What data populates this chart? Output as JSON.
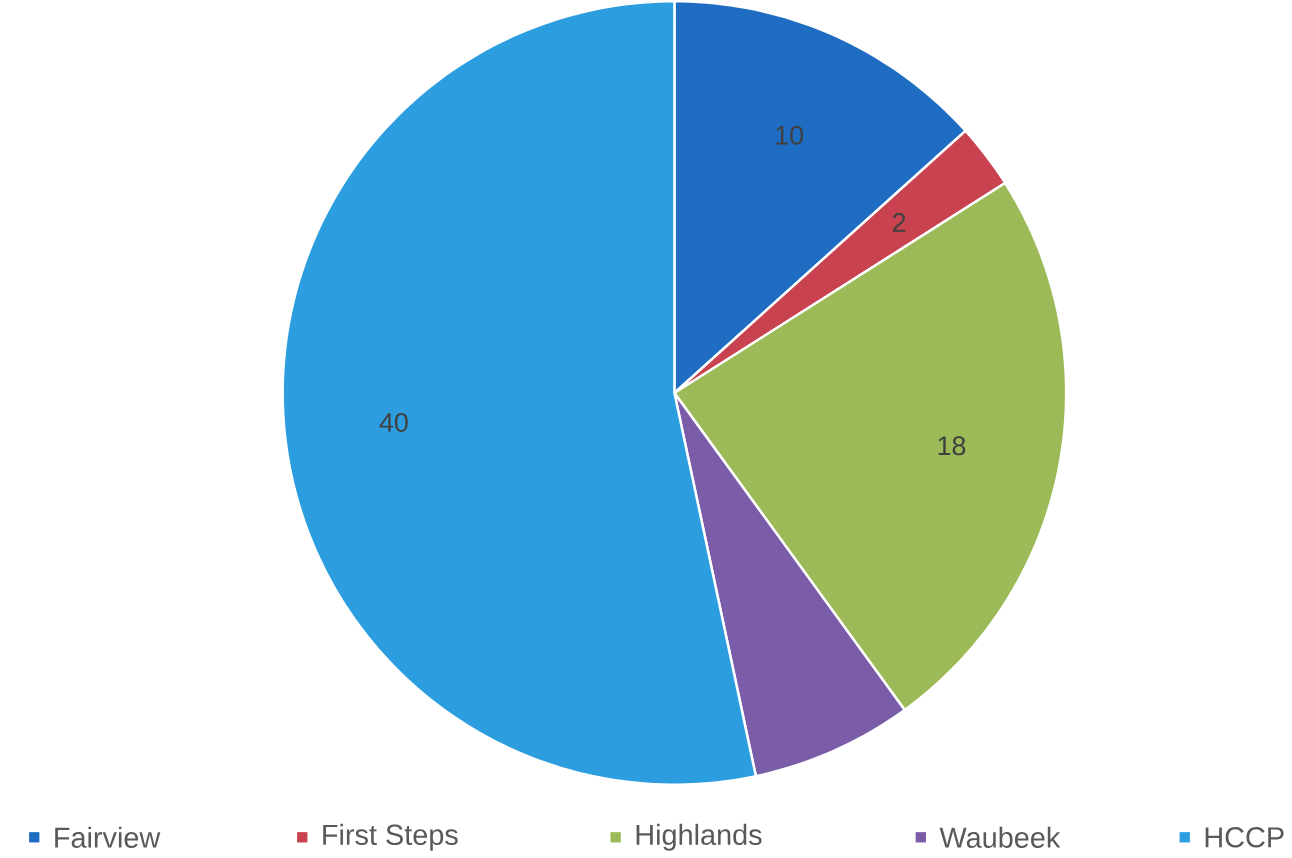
{
  "chart_data": {
    "type": "pie",
    "categories": [
      "Fairview",
      "First Steps",
      "Highlands",
      "Waubeek",
      "HCCP"
    ],
    "values": [
      10,
      2,
      18,
      5,
      40
    ],
    "value_labels": [
      "10",
      "2",
      "18",
      null,
      "40"
    ],
    "colors": [
      "#1f6dc2",
      "#c8424f",
      "#9cbb58",
      "#7a5ca8",
      "#2c9ee0"
    ],
    "legend": "bottom"
  }
}
